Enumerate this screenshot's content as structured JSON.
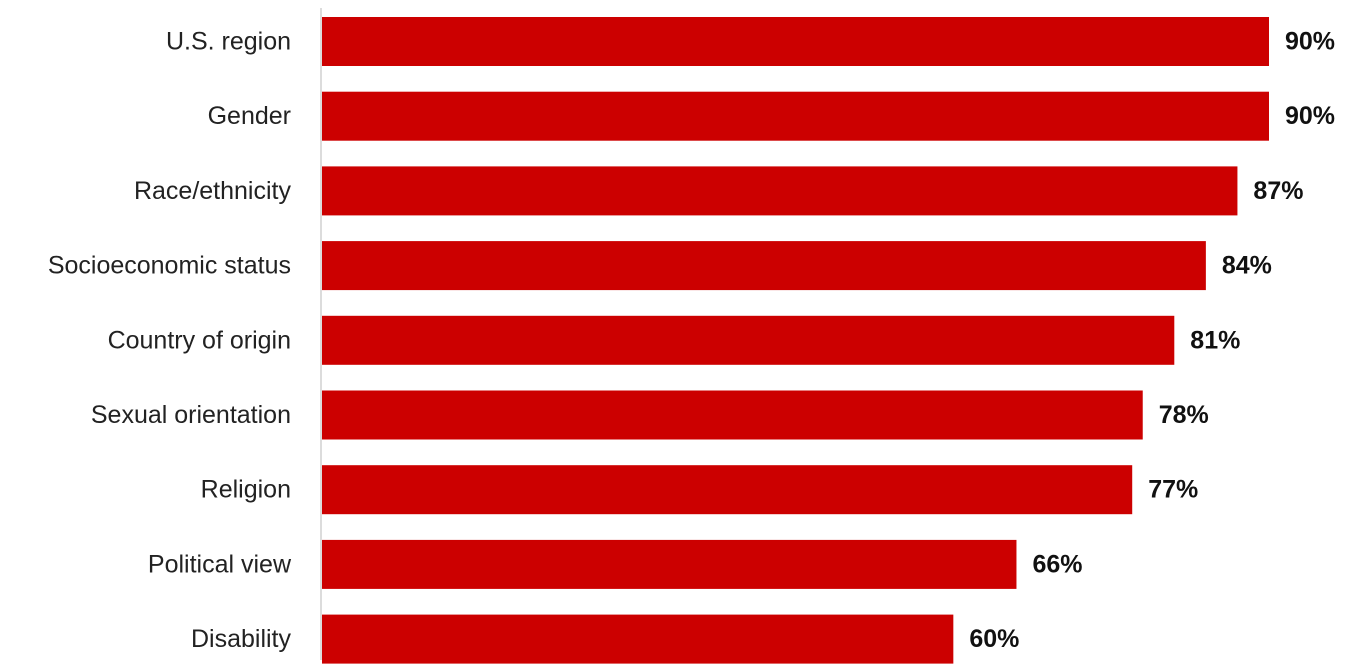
{
  "chart_data": {
    "type": "bar",
    "orientation": "horizontal",
    "categories": [
      "U.S. region",
      "Gender",
      "Race/ethnicity",
      "Socioeconomic status",
      "Country of origin",
      "Sexual orientation",
      "Religion",
      "Political view",
      "Disability"
    ],
    "values": [
      90,
      90,
      87,
      84,
      81,
      78,
      77,
      66,
      60
    ],
    "value_labels": [
      "90%",
      "90%",
      "87%",
      "84%",
      "81%",
      "78%",
      "77%",
      "66%",
      "60%"
    ],
    "unit": "%",
    "title": "",
    "xlabel": "",
    "ylabel": "",
    "xlim": [
      0,
      100
    ],
    "grid": false,
    "legend": "none",
    "bar_color": "#cc0000",
    "axis_color": "#d0d0d0"
  }
}
